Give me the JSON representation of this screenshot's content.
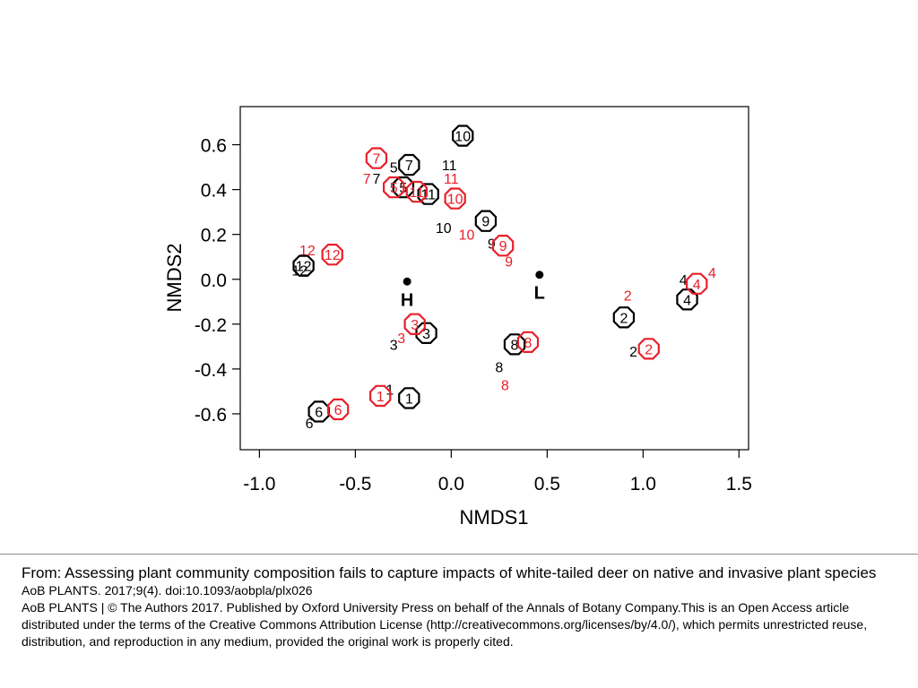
{
  "chart_data": {
    "type": "scatter",
    "title": "",
    "xlabel": "NMDS1",
    "ylabel": "NMDS2",
    "xlim": [
      -1.1,
      1.55
    ],
    "ylim": [
      -0.76,
      0.77
    ],
    "xticks": [
      -1.0,
      -0.5,
      0.0,
      0.5,
      1.0,
      1.5
    ],
    "xtick_labels": [
      "-1.0",
      "-0.5",
      "0.0",
      "0.5",
      "1.0",
      "1.5"
    ],
    "yticks": [
      -0.6,
      -0.4,
      -0.2,
      0.0,
      0.2,
      0.4,
      0.6
    ],
    "ytick_labels": [
      "-0.6",
      "-0.4",
      "-0.2",
      "0.0",
      "0.2",
      "0.4",
      "0.6"
    ],
    "grid": false,
    "colors": {
      "black_series": "#000000",
      "red_series": "#e8202a"
    },
    "circled_points": [
      {
        "label": "10",
        "x": 0.06,
        "y": 0.64,
        "color": "black"
      },
      {
        "label": "7",
        "x": -0.22,
        "y": 0.51,
        "color": "black"
      },
      {
        "label": "7",
        "x": -0.39,
        "y": 0.54,
        "color": "red"
      },
      {
        "label": "5",
        "x": -0.25,
        "y": 0.41,
        "color": "black"
      },
      {
        "label": "5",
        "x": -0.3,
        "y": 0.41,
        "color": "red"
      },
      {
        "label": "11",
        "x": -0.12,
        "y": 0.38,
        "color": "black"
      },
      {
        "label": "11",
        "x": -0.18,
        "y": 0.39,
        "color": "red"
      },
      {
        "label": "10",
        "x": 0.02,
        "y": 0.36,
        "color": "red"
      },
      {
        "label": "9",
        "x": 0.18,
        "y": 0.26,
        "color": "black"
      },
      {
        "label": "9",
        "x": 0.27,
        "y": 0.15,
        "color": "red"
      },
      {
        "label": "12",
        "x": -0.77,
        "y": 0.06,
        "color": "black"
      },
      {
        "label": "12",
        "x": -0.62,
        "y": 0.11,
        "color": "red"
      },
      {
        "label": "4",
        "x": 1.23,
        "y": -0.09,
        "color": "black"
      },
      {
        "label": "4",
        "x": 1.28,
        "y": -0.02,
        "color": "red"
      },
      {
        "label": "2",
        "x": 0.9,
        "y": -0.17,
        "color": "black"
      },
      {
        "label": "2",
        "x": 1.03,
        "y": -0.31,
        "color": "red"
      },
      {
        "label": "3",
        "x": -0.13,
        "y": -0.24,
        "color": "black"
      },
      {
        "label": "3",
        "x": -0.19,
        "y": -0.2,
        "color": "red"
      },
      {
        "label": "8",
        "x": 0.33,
        "y": -0.29,
        "color": "black"
      },
      {
        "label": "8",
        "x": 0.4,
        "y": -0.28,
        "color": "red"
      },
      {
        "label": "1",
        "x": -0.22,
        "y": -0.53,
        "color": "black"
      },
      {
        "label": "1",
        "x": -0.37,
        "y": -0.52,
        "color": "red"
      },
      {
        "label": "6",
        "x": -0.69,
        "y": -0.59,
        "color": "black"
      },
      {
        "label": "6",
        "x": -0.59,
        "y": -0.58,
        "color": "red"
      }
    ],
    "text_points": [
      {
        "label": "11",
        "x": -0.01,
        "y": 0.51,
        "color": "black"
      },
      {
        "label": "11",
        "x": 0.0,
        "y": 0.45,
        "color": "red"
      },
      {
        "label": "7",
        "x": -0.39,
        "y": 0.45,
        "color": "black"
      },
      {
        "label": "7",
        "x": -0.44,
        "y": 0.45,
        "color": "red"
      },
      {
        "label": "5",
        "x": -0.3,
        "y": 0.5,
        "color": "black"
      },
      {
        "label": "10",
        "x": -0.04,
        "y": 0.23,
        "color": "black"
      },
      {
        "label": "10",
        "x": 0.08,
        "y": 0.2,
        "color": "red"
      },
      {
        "label": "9",
        "x": 0.21,
        "y": 0.16,
        "color": "black"
      },
      {
        "label": "9",
        "x": 0.3,
        "y": 0.08,
        "color": "red"
      },
      {
        "label": "12",
        "x": -0.79,
        "y": 0.04,
        "color": "black"
      },
      {
        "label": "12",
        "x": -0.75,
        "y": 0.13,
        "color": "red"
      },
      {
        "label": "4",
        "x": 1.21,
        "y": 0.0,
        "color": "black"
      },
      {
        "label": "4",
        "x": 1.36,
        "y": 0.03,
        "color": "red"
      },
      {
        "label": "2",
        "x": 0.95,
        "y": -0.32,
        "color": "black"
      },
      {
        "label": "2",
        "x": 0.92,
        "y": -0.07,
        "color": "red"
      },
      {
        "label": "3",
        "x": -0.3,
        "y": -0.29,
        "color": "black"
      },
      {
        "label": "3",
        "x": -0.26,
        "y": -0.26,
        "color": "red"
      },
      {
        "label": "8",
        "x": 0.25,
        "y": -0.39,
        "color": "black"
      },
      {
        "label": "8",
        "x": 0.28,
        "y": -0.47,
        "color": "red"
      },
      {
        "label": "1",
        "x": -0.32,
        "y": -0.49,
        "color": "black"
      },
      {
        "label": "6",
        "x": -0.74,
        "y": -0.64,
        "color": "black"
      }
    ],
    "centroids": [
      {
        "label": "H",
        "x": -0.23,
        "y": -0.01
      },
      {
        "label": "L",
        "x": 0.46,
        "y": 0.02
      }
    ]
  },
  "caption": {
    "from": "From: Assessing plant community composition fails to capture impacts of white-tailed deer on native and invasive plant species",
    "citation": "AoB PLANTS. 2017;9(4). doi:10.1093/aobpla/plx026",
    "license": "AoB PLANTS | © The Authors 2017. Published by Oxford University Press on behalf of the Annals of Botany Company.This is an Open Access article distributed under the terms of the Creative Commons Attribution License (http://creativecommons.org/licenses/by/4.0/), which permits unrestricted reuse, distribution, and reproduction in any medium, provided the original work is properly cited."
  }
}
